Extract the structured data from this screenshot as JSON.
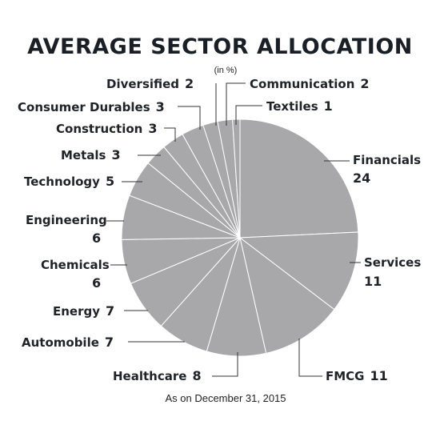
{
  "chart_data": {
    "type": "pie",
    "title": "AVERAGE SECTOR ALLOCATION",
    "subtitle": "(in %)",
    "footnote": "As on December 31, 2015",
    "slice_color": "#a8a8aa",
    "categories": [
      "Financials",
      "Services",
      "FMCG",
      "Healthcare",
      "Automobile",
      "Energy",
      "Chemicals",
      "Engineering",
      "Technology",
      "Metals",
      "Construction",
      "Consumer Durables",
      "Diversified",
      "Communication",
      "Textiles"
    ],
    "values": [
      24,
      11,
      11,
      8,
      7,
      7,
      6,
      6,
      5,
      3,
      3,
      3,
      2,
      2,
      1
    ],
    "value_labels": [
      "24",
      "11",
      "11",
      "8",
      "7",
      "7",
      "6",
      "6",
      "5",
      "3",
      "3",
      "3",
      "2",
      "2",
      "1"
    ]
  }
}
